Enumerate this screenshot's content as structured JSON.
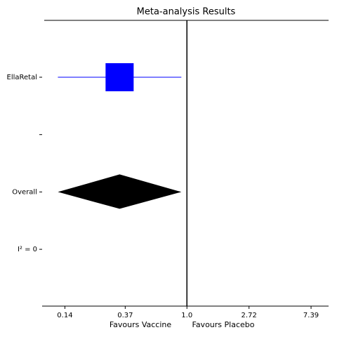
{
  "chart_data": {
    "type": "forest",
    "title": "Meta-analysis Results",
    "xlabel_left": "Favours Vaccine",
    "xlabel_right": "Favours Placebo",
    "categories": [
      "EllaRetal",
      null,
      "Overall",
      "I² = 0"
    ],
    "values": [
      0.338,
      null,
      0.338,
      null
    ],
    "ci_low": [
      0.125,
      null,
      0.125,
      null
    ],
    "ci_high": [
      0.914,
      null,
      0.914,
      null
    ],
    "markers": [
      "square",
      null,
      "diamond",
      null
    ],
    "colors": [
      "#0000ff",
      null,
      "#000000",
      null
    ],
    "reference": 1,
    "xscale": "log",
    "xlim": [
      0.097,
      9.8
    ],
    "xticks": [
      0.14,
      0.37,
      {
        "value": 1.0,
        "label": "1.0"
      },
      2.72,
      7.39
    ]
  }
}
